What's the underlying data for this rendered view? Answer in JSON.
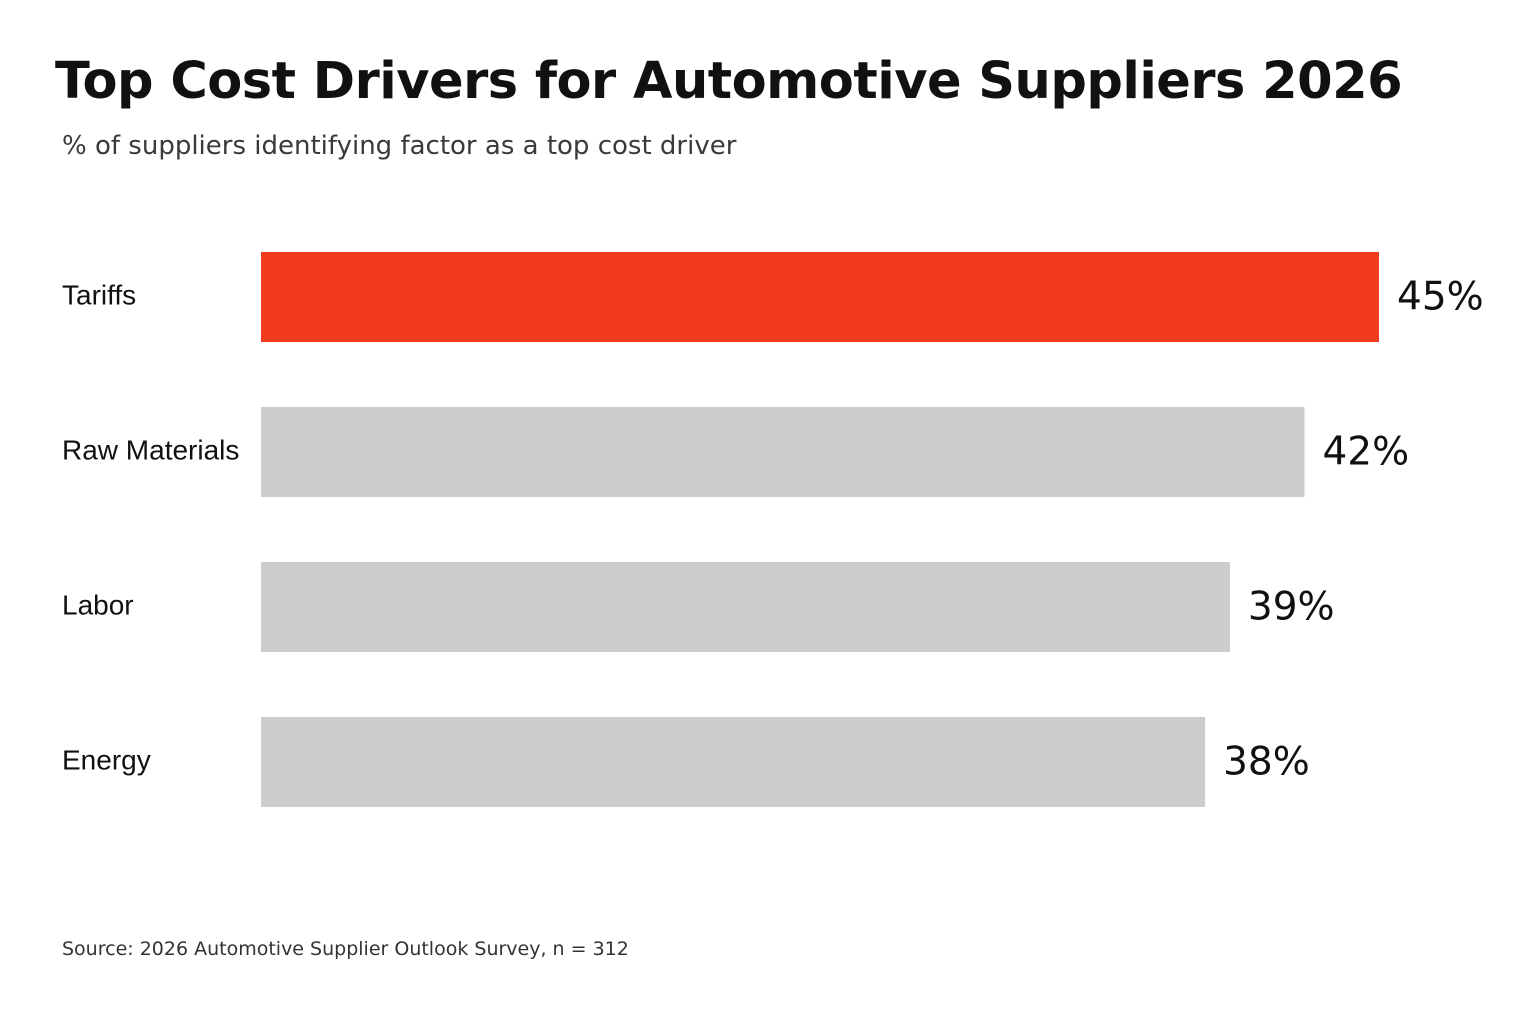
{
  "chart_data": {
    "type": "bar",
    "orientation": "horizontal",
    "title": "Top Cost Drivers for Automotive Suppliers 2026",
    "subtitle": "% of suppliers identifying factor as a top cost driver",
    "categories": [
      "Tariffs",
      "Raw Materials",
      "Labor",
      "Energy"
    ],
    "values": [
      45,
      42,
      39,
      38
    ],
    "value_labels": [
      "45%",
      "42%",
      "39%",
      "38%"
    ],
    "unit": "%",
    "highlight_category": "Tariffs",
    "colors": {
      "highlight": "#f23a1f",
      "default": "#cccccc"
    },
    "xlim": [
      0,
      45
    ],
    "grid": false,
    "legend": "none",
    "source": "Source: 2026 Automotive Supplier Outlook Survey, n = 312"
  }
}
